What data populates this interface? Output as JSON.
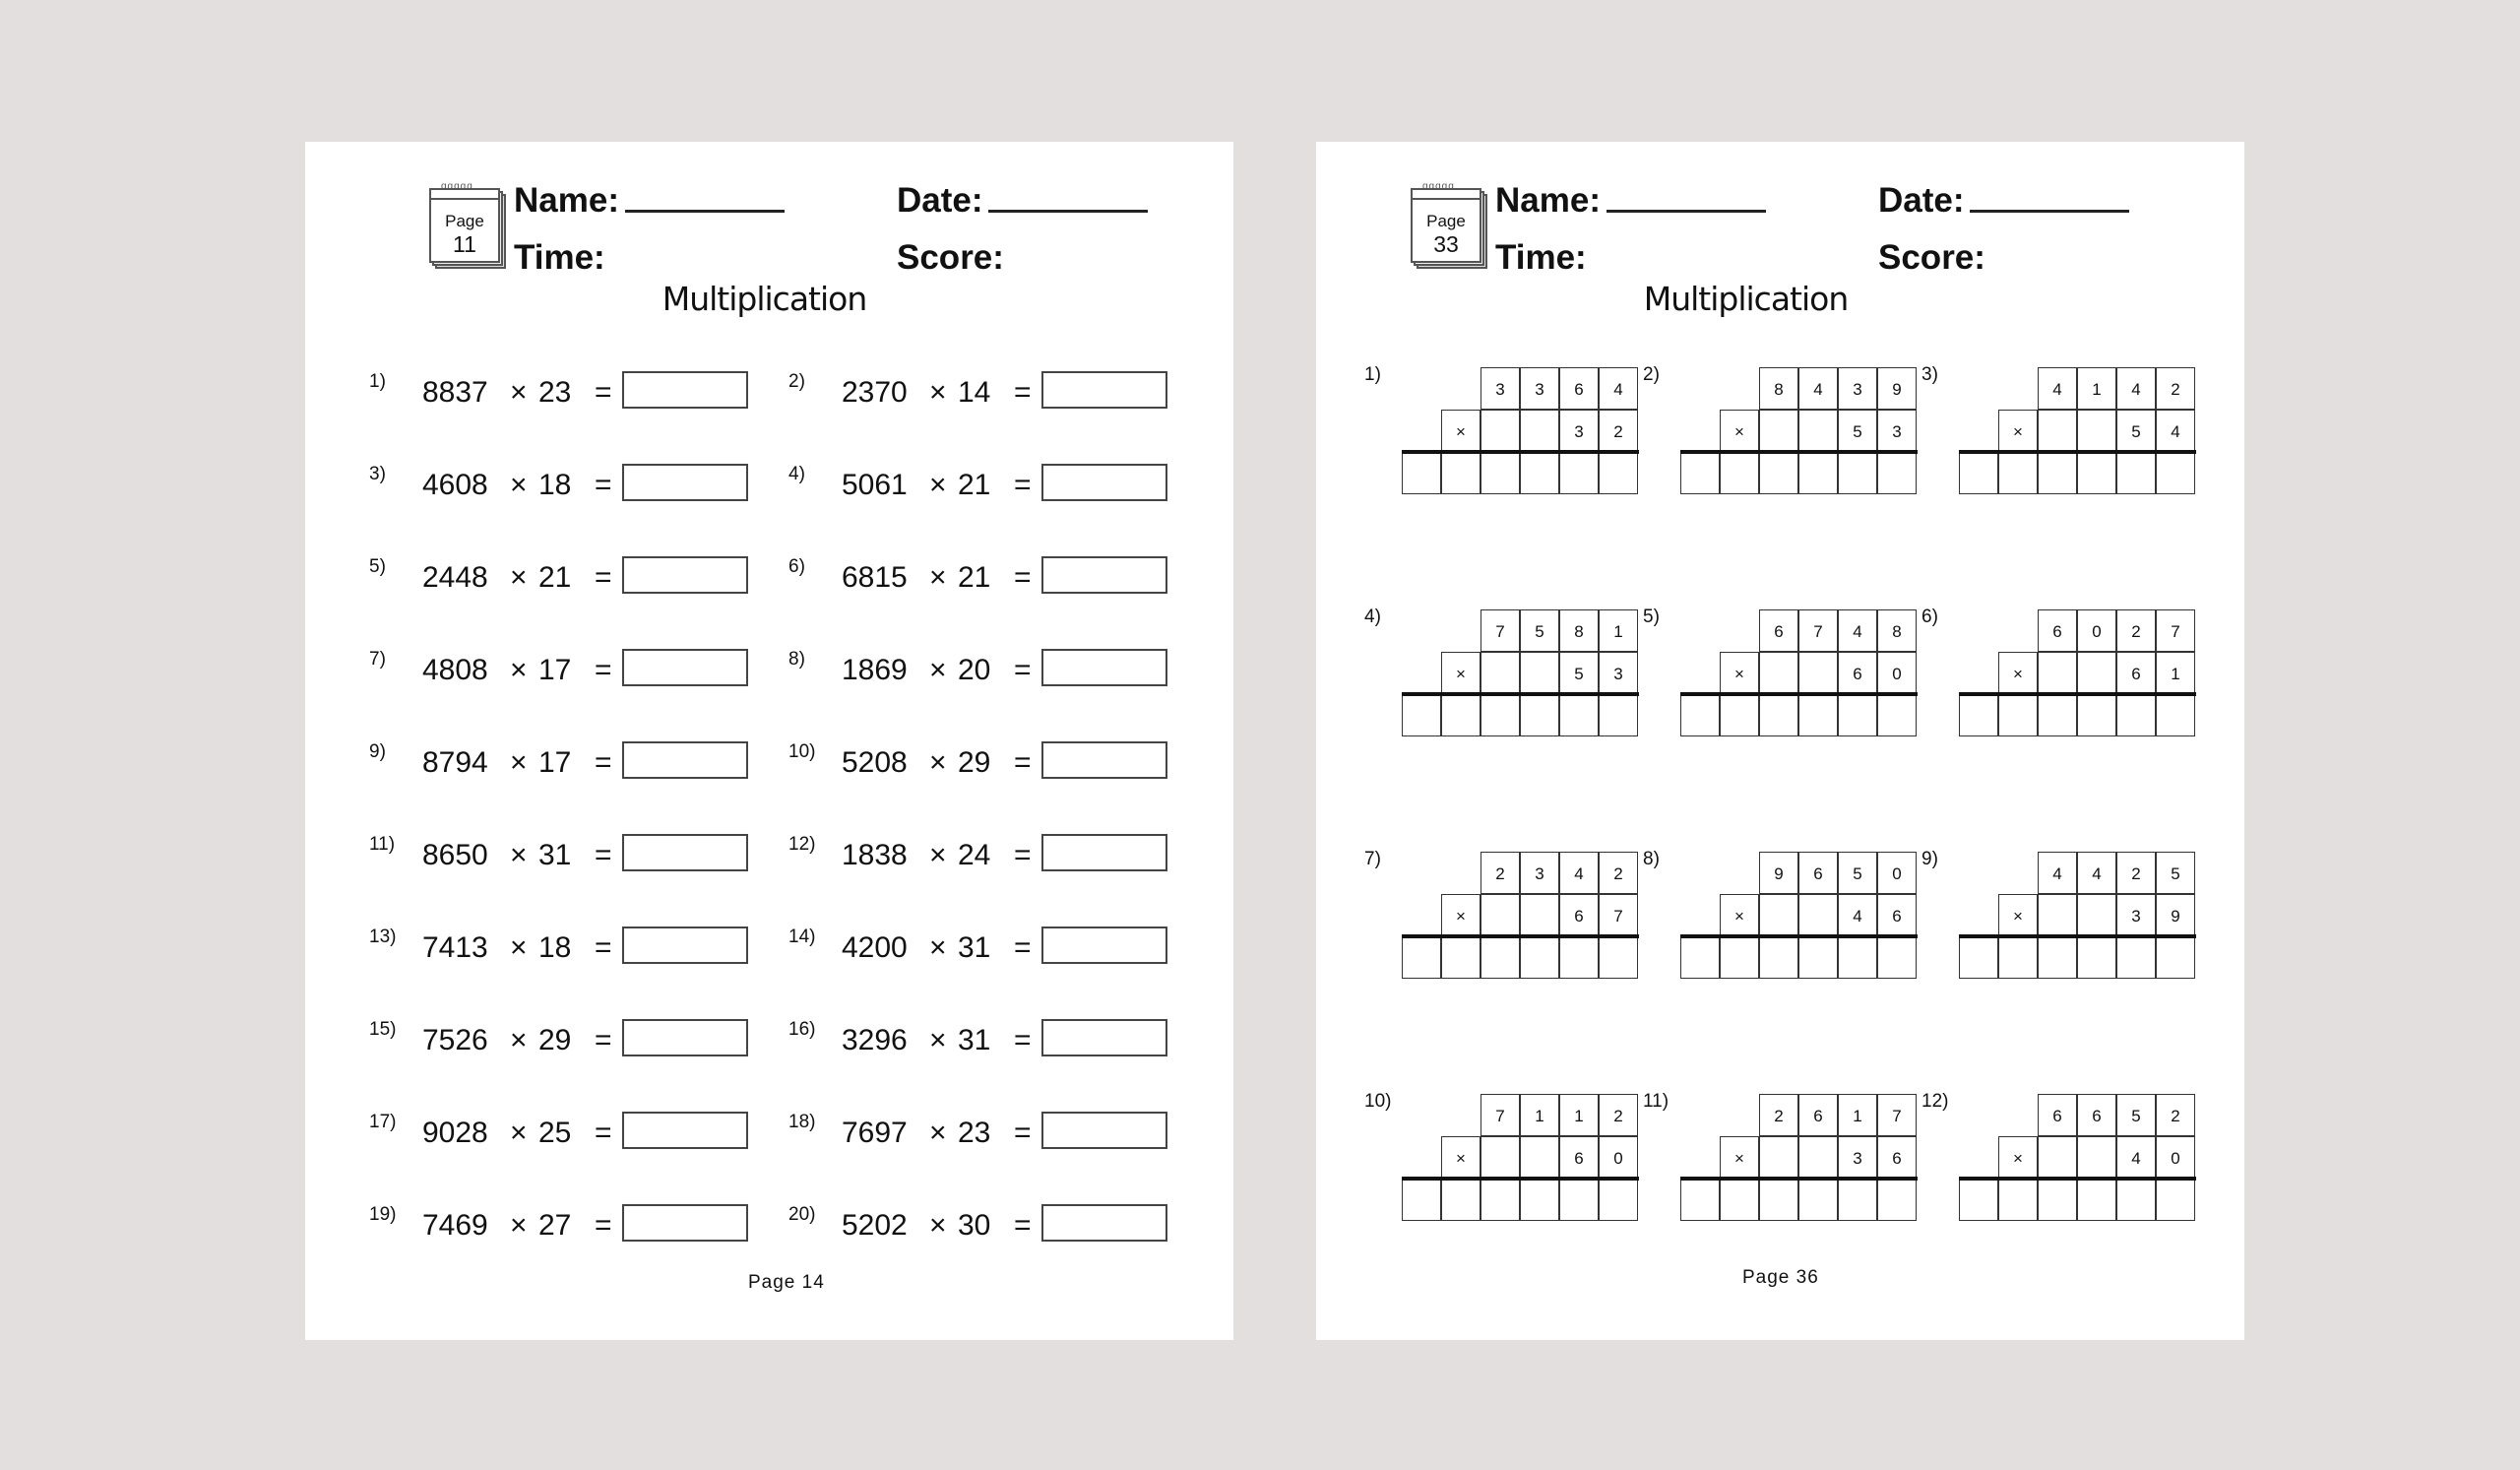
{
  "background_color": "#e3dfde",
  "pages": [
    {
      "id": "left",
      "pad": {
        "label": "Page",
        "number": "11"
      },
      "name_label": "Name:",
      "date_label": "Date:",
      "time_label": "Time:",
      "score_label": "Score:",
      "title": "Multiplication",
      "times_symbol": "×",
      "equals_symbol": "=",
      "problems": [
        {
          "n": "1)",
          "a": "8837",
          "b": "23"
        },
        {
          "n": "2)",
          "a": "2370",
          "b": "14"
        },
        {
          "n": "3)",
          "a": "4608",
          "b": "18"
        },
        {
          "n": "4)",
          "a": "5061",
          "b": "21"
        },
        {
          "n": "5)",
          "a": "2448",
          "b": "21"
        },
        {
          "n": "6)",
          "a": "6815",
          "b": "21"
        },
        {
          "n": "7)",
          "a": "4808",
          "b": "17"
        },
        {
          "n": "8)",
          "a": "1869",
          "b": "20"
        },
        {
          "n": "9)",
          "a": "8794",
          "b": "17"
        },
        {
          "n": "10)",
          "a": "5208",
          "b": "29"
        },
        {
          "n": "11)",
          "a": "8650",
          "b": "31"
        },
        {
          "n": "12)",
          "a": "1838",
          "b": "24"
        },
        {
          "n": "13)",
          "a": "7413",
          "b": "18"
        },
        {
          "n": "14)",
          "a": "4200",
          "b": "31"
        },
        {
          "n": "15)",
          "a": "7526",
          "b": "29"
        },
        {
          "n": "16)",
          "a": "3296",
          "b": "31"
        },
        {
          "n": "17)",
          "a": "9028",
          "b": "25"
        },
        {
          "n": "18)",
          "a": "7697",
          "b": "23"
        },
        {
          "n": "19)",
          "a": "7469",
          "b": "27"
        },
        {
          "n": "20)",
          "a": "5202",
          "b": "30"
        }
      ],
      "footer": "Page  14"
    },
    {
      "id": "right",
      "pad": {
        "label": "Page",
        "number": "33"
      },
      "name_label": "Name:",
      "date_label": "Date:",
      "time_label": "Time:",
      "score_label": "Score:",
      "title": "Multiplication",
      "times_symbol": "×",
      "grid_problems": [
        {
          "n": "1)",
          "a": [
            "3",
            "3",
            "6",
            "4"
          ],
          "b": [
            "3",
            "2"
          ]
        },
        {
          "n": "2)",
          "a": [
            "8",
            "4",
            "3",
            "9"
          ],
          "b": [
            "5",
            "3"
          ]
        },
        {
          "n": "3)",
          "a": [
            "4",
            "1",
            "4",
            "2"
          ],
          "b": [
            "5",
            "4"
          ]
        },
        {
          "n": "4)",
          "a": [
            "7",
            "5",
            "8",
            "1"
          ],
          "b": [
            "5",
            "3"
          ]
        },
        {
          "n": "5)",
          "a": [
            "6",
            "7",
            "4",
            "8"
          ],
          "b": [
            "6",
            "0"
          ]
        },
        {
          "n": "6)",
          "a": [
            "6",
            "0",
            "2",
            "7"
          ],
          "b": [
            "6",
            "1"
          ]
        },
        {
          "n": "7)",
          "a": [
            "2",
            "3",
            "4",
            "2"
          ],
          "b": [
            "6",
            "7"
          ]
        },
        {
          "n": "8)",
          "a": [
            "9",
            "6",
            "5",
            "0"
          ],
          "b": [
            "4",
            "6"
          ]
        },
        {
          "n": "9)",
          "a": [
            "4",
            "4",
            "2",
            "5"
          ],
          "b": [
            "3",
            "9"
          ]
        },
        {
          "n": "10)",
          "a": [
            "7",
            "1",
            "1",
            "2"
          ],
          "b": [
            "6",
            "0"
          ]
        },
        {
          "n": "11)",
          "a": [
            "2",
            "6",
            "1",
            "7"
          ],
          "b": [
            "3",
            "6"
          ]
        },
        {
          "n": "12)",
          "a": [
            "6",
            "6",
            "5",
            "2"
          ],
          "b": [
            "4",
            "0"
          ]
        }
      ],
      "footer": "Page  36"
    }
  ]
}
